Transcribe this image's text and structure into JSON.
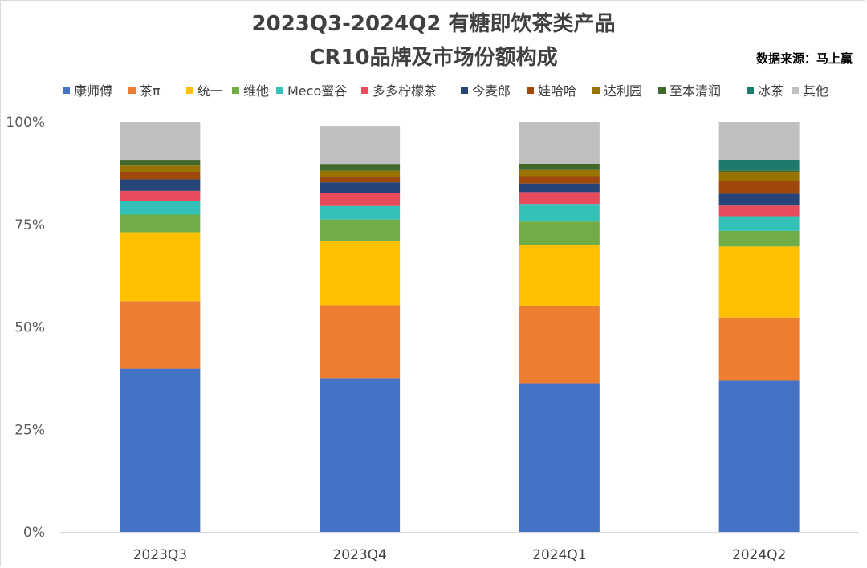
{
  "title_line1": "2023Q3-2024Q2 有糖即饮茶类产品",
  "title_line2": "CR10品牌及市场份额构成",
  "source_note": "数据来源：马上赢",
  "chart_data": {
    "type": "bar",
    "stacked": true,
    "percent": true,
    "categories": [
      "2023Q3",
      "2023Q4",
      "2024Q1",
      "2024Q2"
    ],
    "ylim": [
      0,
      100
    ],
    "yticks": [
      0,
      25,
      50,
      75,
      100
    ],
    "ytick_labels": [
      "0%",
      "25%",
      "50%",
      "75%",
      "100%"
    ],
    "legend_position": "top",
    "grid": false,
    "series": [
      {
        "name": "康师傅",
        "color": "#4472C4",
        "values": [
          39.8,
          37.5,
          36.1,
          36.9
        ]
      },
      {
        "name": "茶π",
        "color": "#ED7D31",
        "values": [
          16.5,
          17.8,
          19.0,
          15.4
        ]
      },
      {
        "name": "统一",
        "color": "#FFC000",
        "values": [
          16.8,
          15.7,
          14.8,
          17.3
        ]
      },
      {
        "name": "维他",
        "color": "#70AD47",
        "values": [
          4.3,
          5.2,
          5.8,
          3.8
        ]
      },
      {
        "name": "Meco蜜谷",
        "color": "#33C1B8",
        "values": [
          3.4,
          3.3,
          4.3,
          3.6
        ]
      },
      {
        "name": "多多柠檬茶",
        "color": "#E84C5C",
        "values": [
          2.4,
          3.2,
          2.9,
          2.6
        ]
      },
      {
        "name": "今麦郎",
        "color": "#264478",
        "values": [
          2.8,
          2.6,
          2.1,
          2.9
        ]
      },
      {
        "name": "娃哈哈",
        "color": "#9E480E",
        "values": [
          1.8,
          1.2,
          1.6,
          3.1
        ]
      },
      {
        "name": "达利园",
        "color": "#997300",
        "values": [
          1.6,
          1.6,
          1.7,
          2.2
        ]
      },
      {
        "name": "至本清润",
        "color": "#43682B",
        "values": [
          1.2,
          1.5,
          1.5,
          0.4
        ]
      },
      {
        "name": "冰茶",
        "color": "#1F7A6E",
        "values": [
          0.0,
          0.0,
          0.0,
          2.6
        ]
      },
      {
        "name": "其他",
        "color": "#BFBFBF",
        "values": [
          9.4,
          9.4,
          10.2,
          9.2
        ]
      }
    ]
  }
}
